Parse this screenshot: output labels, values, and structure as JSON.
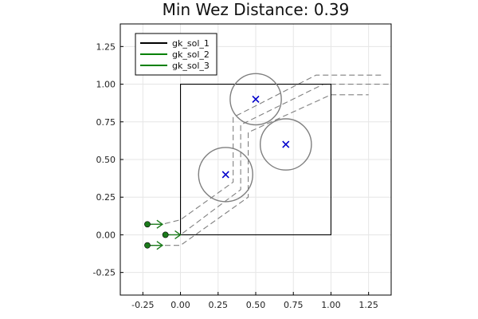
{
  "chart_data": {
    "type": "line",
    "title": "Min Wez Distance: 0.39",
    "xlabel": "",
    "ylabel": "",
    "xlim": [
      -0.4,
      1.4
    ],
    "ylim": [
      -0.4,
      1.4
    ],
    "xticks": [
      -0.25,
      0.0,
      0.25,
      0.5,
      0.75,
      1.0,
      1.25
    ],
    "xtick_labels": [
      "-0.25",
      "0.00",
      "0.25",
      "0.50",
      "0.75",
      "1.00",
      "1.25"
    ],
    "yticks": [
      -0.25,
      0.0,
      0.25,
      0.5,
      0.75,
      1.0,
      1.25
    ],
    "ytick_labels": [
      "-0.25",
      "0.00",
      "0.25",
      "0.50",
      "0.75",
      "1.00",
      "1.25"
    ],
    "grid": true,
    "legend_position": "top-left",
    "square": {
      "x": [
        0,
        1,
        1,
        0,
        0
      ],
      "y": [
        0,
        0,
        1,
        1,
        0
      ],
      "color": "#000000"
    },
    "obstacles": [
      {
        "center": [
          0.3,
          0.4
        ],
        "radius": 0.18
      },
      {
        "center": [
          0.5,
          0.9
        ],
        "radius": 0.17
      },
      {
        "center": [
          0.7,
          0.6
        ],
        "radius": 0.17
      }
    ],
    "obstacle_color": "#7f7f7f",
    "obstacle_center_color": "#0000cc",
    "paths": [
      {
        "x": [
          -0.22,
          -0.12,
          0.0,
          0.35,
          0.35,
          0.9,
          1.35
        ],
        "y": [
          0.07,
          0.07,
          0.1,
          0.35,
          0.78,
          1.06,
          1.06
        ]
      },
      {
        "x": [
          -0.1,
          0.0,
          0.4,
          0.4,
          0.95,
          1.4
        ],
        "y": [
          0.0,
          0.0,
          0.3,
          0.73,
          1.0,
          1.0
        ]
      },
      {
        "x": [
          -0.22,
          -0.12,
          0.0,
          0.45,
          0.45,
          1.0,
          1.25
        ],
        "y": [
          -0.07,
          -0.07,
          -0.07,
          0.25,
          0.68,
          0.93,
          0.93
        ]
      }
    ],
    "path_color": "#808080",
    "agents": [
      {
        "x": -0.22,
        "y": 0.07,
        "dx": 0.1,
        "dy": 0.0
      },
      {
        "x": -0.1,
        "y": 0.0,
        "dx": 0.1,
        "dy": 0.0
      },
      {
        "x": -0.22,
        "y": -0.07,
        "dx": 0.1,
        "dy": 0.0
      }
    ],
    "agent_color": "#1a7a1a",
    "series": [
      {
        "name": "gk_sol_1",
        "color": "#000000"
      },
      {
        "name": "gk_sol_2",
        "color": "#008000"
      },
      {
        "name": "gk_sol_3",
        "color": "#008000"
      }
    ]
  }
}
